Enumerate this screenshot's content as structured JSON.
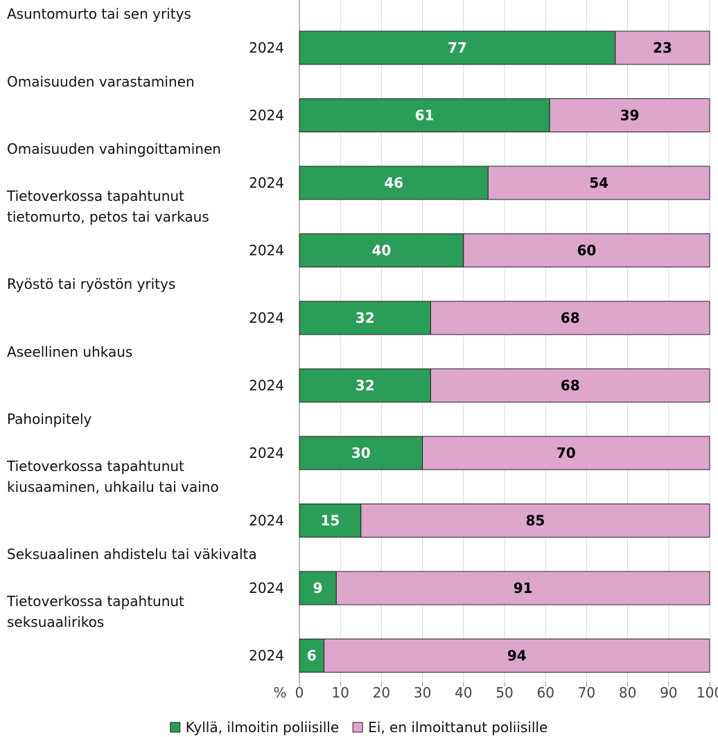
{
  "chart_data": {
    "type": "stacked_barh",
    "categories": [
      "Asuntomurto tai sen yritys",
      "Omaisuuden varastaminen",
      "Omaisuuden vahingoittaminen",
      "Tietoverkossa tapahtunut\ntietomurto, petos tai varkaus",
      "Ryöstö tai ryöstön yritys",
      "Aseellinen uhkaus",
      "Pahoinpitely",
      "Tietoverkossa tapahtunut\nkiusaaminen, uhkailu tai vaino",
      "Seksuaalinen ahdistelu tai väkivalta",
      "Tietoverkossa tapahtunut\nseksuaalirikos"
    ],
    "period": "2024",
    "series": [
      {
        "name": "Kyllä, ilmoitin poliisille",
        "color": "#2a9d58",
        "label_color": "#ffffff",
        "values": [
          77,
          61,
          46,
          40,
          32,
          32,
          30,
          15,
          9,
          6
        ]
      },
      {
        "name": "Ei, en ilmoittanut poliisille",
        "color": "#dea6cd",
        "label_color": "#000000",
        "values": [
          23,
          39,
          54,
          60,
          68,
          68,
          70,
          85,
          91,
          94
        ]
      }
    ],
    "xlabel": "%",
    "xlim": [
      0,
      100
    ],
    "xticks": [
      0,
      10,
      20,
      30,
      40,
      50,
      60,
      70,
      80,
      90,
      100
    ],
    "grid": true
  }
}
